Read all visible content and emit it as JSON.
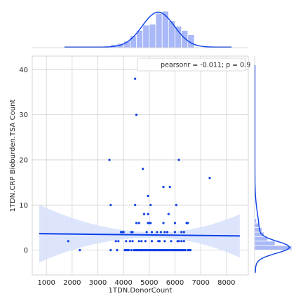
{
  "chart_data": {
    "type": "scatter",
    "subtype": "jointplot-with-regression",
    "xlabel": "1TDN.DonorCount",
    "ylabel": "1TDN.CRP Bioburden.TSA Count",
    "xlim": [
      450,
      8850
    ],
    "ylim": [
      -5.5,
      43
    ],
    "x_ticks": [
      1000,
      2000,
      3000,
      4000,
      5000,
      6000,
      7000,
      8000
    ],
    "y_ticks": [
      0,
      10,
      20,
      30,
      40
    ],
    "grid": true,
    "legend": {
      "placement": "top-right",
      "text": "pearsonr = -0.011; p = 0.9"
    },
    "colors": {
      "main": "#0b3fe8",
      "hist_fill": "#a9b8f7",
      "band": "#d6e0fb",
      "grid": "#d0d0d0"
    },
    "regression": {
      "x": [
        720,
        8520
      ],
      "y": [
        3.65,
        3.15
      ],
      "ci_lower_at_x0": -2.8,
      "ci_upper_at_x0": 10.0,
      "ci_lower_at_x1": -1.6,
      "ci_upper_at_x1": 8.0,
      "ci_center_x": 5200
    },
    "points": {
      "x": [
        1850,
        2300,
        3450,
        3500,
        3950,
        3900,
        4000,
        4450,
        4500,
        4450,
        4750,
        4950,
        5050,
        4950,
        4500,
        4600,
        4950,
        5050,
        5550,
        5800,
        5750,
        6050,
        6150,
        6500,
        6450,
        7350,
        4300,
        4350,
        4900,
        5100,
        5300,
        5450,
        5600,
        5700,
        6000,
        6250,
        6350,
        3700,
        4250,
        4700,
        5400,
        6150,
        6250,
        4800,
        5000,
        5550,
        6000,
        3500,
        3750,
        4050,
        4100,
        4150,
        4200,
        4300,
        4400,
        4450,
        4500,
        4550,
        4600,
        4650,
        4700,
        4750,
        4800,
        4850,
        4900,
        4950,
        5000,
        5050,
        5100,
        5150,
        5200,
        5250,
        5300,
        5350,
        5400,
        5450,
        5500,
        5550,
        5600,
        5650,
        5700,
        5750,
        5800,
        5850,
        5900,
        5950,
        6000,
        6050,
        6100,
        6150,
        6200,
        6250,
        6300,
        6350,
        6400,
        6500,
        6550,
        6600,
        3800,
        4100,
        4350,
        4600,
        4850,
        5100,
        5350,
        5600,
        5850,
        6100,
        6350
      ],
      "y": [
        2,
        0,
        20,
        10,
        4,
        4,
        4,
        38,
        30,
        10,
        18,
        12,
        10,
        8,
        6,
        6,
        6,
        6,
        14,
        14,
        8,
        10,
        20,
        6,
        6,
        16,
        4,
        4,
        4,
        4,
        4,
        4,
        4,
        4,
        4,
        4,
        4,
        2,
        2,
        2,
        2,
        2,
        2,
        8,
        6,
        6,
        6,
        0,
        0,
        0,
        0,
        0,
        0,
        0,
        0,
        0,
        0,
        0,
        0,
        0,
        0,
        0,
        0,
        0,
        0,
        0,
        0,
        0,
        0,
        0,
        0,
        0,
        0,
        0,
        0,
        0,
        0,
        0,
        0,
        0,
        0,
        0,
        0,
        0,
        0,
        0,
        0,
        0,
        0,
        0,
        0,
        0,
        0,
        0,
        0,
        0,
        0,
        0,
        2,
        2,
        2,
        2,
        2,
        2,
        2,
        2,
        2,
        2,
        2
      ]
    },
    "x_hist": {
      "bin_edges": [
        3500,
        3750,
        4000,
        4250,
        4500,
        4750,
        5000,
        5250,
        5500,
        5750,
        6000,
        6250,
        6500,
        6750
      ],
      "counts": [
        1.5,
        2,
        3,
        5.5,
        8,
        10.5,
        11,
        16,
        17,
        12.5,
        10,
        8,
        6
      ]
    },
    "y_hist": {
      "bin_edges": [
        0,
        1,
        2,
        3,
        4,
        5,
        6,
        7
      ],
      "counts": [
        40,
        22,
        14,
        10,
        8,
        5,
        2
      ]
    }
  }
}
